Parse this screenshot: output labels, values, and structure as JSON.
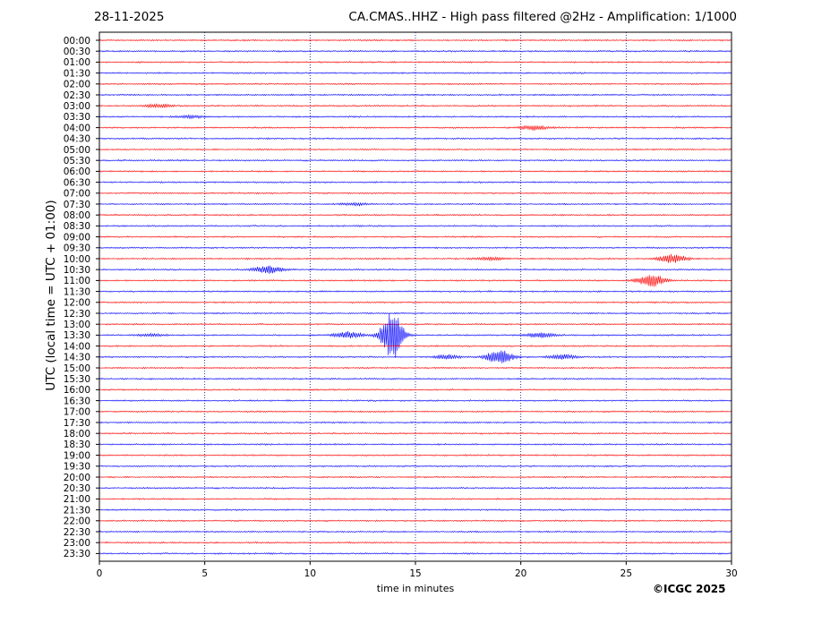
{
  "header": {
    "date": "28-11-2025",
    "title": "CA.CMAS..HHZ - High pass filtered @2Hz - Amplification: 1/1000"
  },
  "footer": {
    "copyright": "©ICGC 2025"
  },
  "colors": {
    "trace_a": "#ff0000",
    "trace_b": "#0000ff",
    "grid": "#00008b"
  },
  "chart_data": {
    "type": "line",
    "xlabel": "time in minutes",
    "ylabel": "UTC (local time = UTC + 01:00)",
    "xlim": [
      0,
      30
    ],
    "x_ticks": [
      0,
      5,
      10,
      15,
      20,
      25,
      30
    ],
    "vertical_gridlines": [
      5,
      10,
      15,
      20,
      25
    ],
    "y_categories": [
      "00:00",
      "00:30",
      "01:00",
      "01:30",
      "02:00",
      "02:30",
      "03:00",
      "03:30",
      "04:00",
      "04:30",
      "05:00",
      "05:30",
      "06:00",
      "06:30",
      "07:00",
      "07:30",
      "08:00",
      "08:30",
      "09:00",
      "09:30",
      "10:00",
      "10:30",
      "11:00",
      "11:30",
      "12:00",
      "12:30",
      "13:00",
      "13:30",
      "14:00",
      "14:30",
      "15:00",
      "15:30",
      "16:00",
      "16:30",
      "17:00",
      "17:30",
      "18:00",
      "18:30",
      "19:00",
      "19:30",
      "20:00",
      "20:30",
      "21:00",
      "21:30",
      "22:00",
      "22:30",
      "23:00",
      "23:30"
    ],
    "trace_colors_alternating": [
      "red",
      "blue"
    ],
    "events": [
      {
        "row": "03:00",
        "x": 2.8,
        "amp": 0.15
      },
      {
        "row": "03:30",
        "x": 4.3,
        "amp": 0.12
      },
      {
        "row": "04:00",
        "x": 20.6,
        "amp": 0.2
      },
      {
        "row": "07:30",
        "x": 12.1,
        "amp": 0.1
      },
      {
        "row": "10:00",
        "x": 18.5,
        "amp": 0.12
      },
      {
        "row": "10:00",
        "x": 27.2,
        "amp": 0.4
      },
      {
        "row": "10:30",
        "x": 8.0,
        "amp": 0.35
      },
      {
        "row": "11:00",
        "x": 26.2,
        "amp": 0.55
      },
      {
        "row": "13:30",
        "x": 2.4,
        "amp": 0.12
      },
      {
        "row": "13:30",
        "x": 11.8,
        "amp": 0.3
      },
      {
        "row": "13:30",
        "x": 13.9,
        "amp": 2.3
      },
      {
        "row": "13:30",
        "x": 20.9,
        "amp": 0.2
      },
      {
        "row": "14:30",
        "x": 16.5,
        "amp": 0.2
      },
      {
        "row": "14:30",
        "x": 19.0,
        "amp": 0.6
      },
      {
        "row": "14:30",
        "x": 22.0,
        "amp": 0.2
      }
    ]
  }
}
